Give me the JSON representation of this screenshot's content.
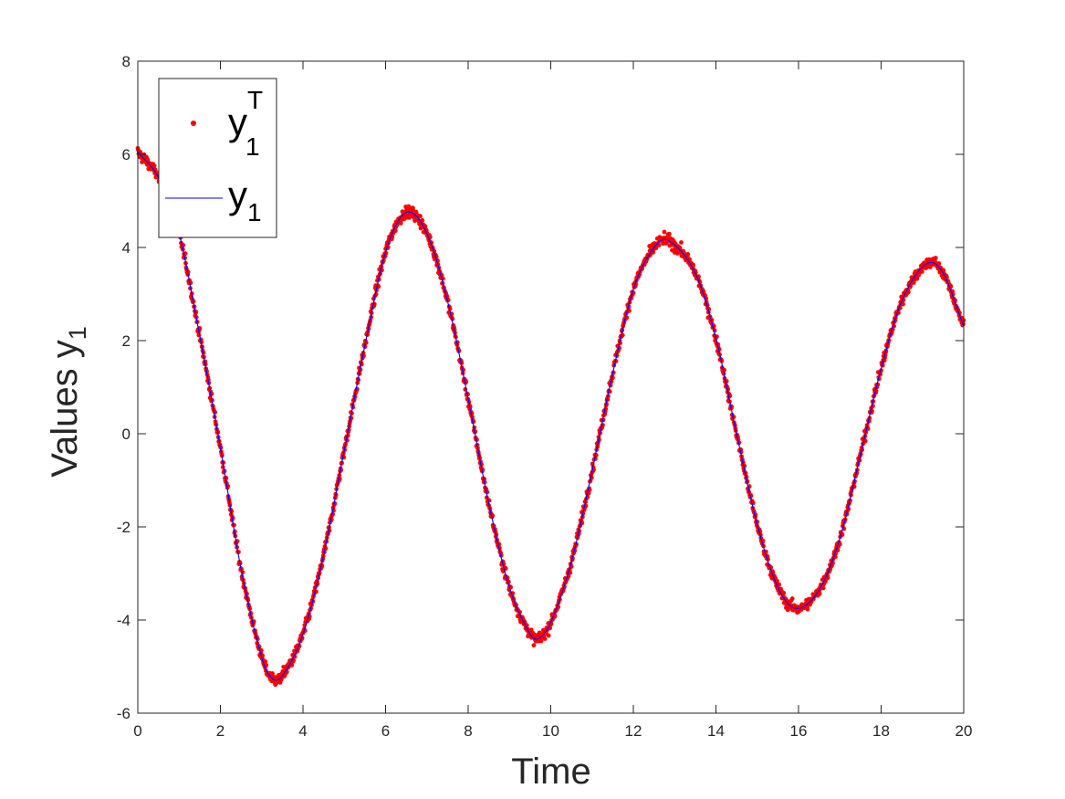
{
  "chart_data": {
    "type": "scatter",
    "xlabel": "Time",
    "ylabel": {
      "main": "Values y",
      "sub": "1"
    },
    "xlim": [
      0,
      20
    ],
    "ylim": [
      -6,
      8
    ],
    "xticks": [
      0,
      2,
      4,
      6,
      8,
      10,
      12,
      14,
      16,
      18,
      20
    ],
    "yticks": [
      -6,
      -4,
      -2,
      0,
      2,
      4,
      6,
      8
    ],
    "grid": false,
    "legend": {
      "placement": "top-left",
      "entries": [
        {
          "symbol": "marker",
          "base": "y",
          "sub": "1",
          "sup": "T"
        },
        {
          "symbol": "line",
          "base": "y",
          "sub": "1"
        }
      ]
    },
    "series": [
      {
        "name": "y1T",
        "kind": "noisy-markers",
        "color": "#ff0000",
        "x": [
          0,
          0.5,
          1,
          1.5,
          2,
          2.5,
          3,
          3.25,
          3.5,
          4,
          4.5,
          5,
          5.5,
          6,
          6.5,
          7,
          7.5,
          8,
          8.5,
          9,
          9.5,
          9.7,
          10,
          10.5,
          11,
          11.5,
          12,
          12.5,
          12.85,
          13.5,
          14,
          14.5,
          15,
          15.5,
          15.95,
          16.5,
          17,
          17.5,
          18,
          18.5,
          19.1,
          19.5,
          20
        ],
        "y": [
          6.05,
          5.5,
          4.3,
          2.1,
          -0.3,
          -2.9,
          -4.8,
          -5.25,
          -5.2,
          -4.3,
          -2.6,
          -0.35,
          1.9,
          3.9,
          4.75,
          4.3,
          2.85,
          0.75,
          -1.5,
          -3.3,
          -4.3,
          -4.4,
          -4.05,
          -2.75,
          -0.8,
          1.3,
          3.1,
          4.0,
          4.15,
          3.45,
          2.05,
          0.0,
          -1.95,
          -3.3,
          -3.75,
          -3.35,
          -2.25,
          -0.45,
          1.4,
          2.85,
          3.65,
          3.45,
          2.3
        ]
      },
      {
        "name": "y1",
        "kind": "line",
        "color": "#0000ff",
        "x": [
          0,
          0.5,
          1,
          1.5,
          2,
          2.5,
          3,
          3.25,
          3.5,
          4,
          4.5,
          5,
          5.5,
          6,
          6.5,
          7,
          7.5,
          8,
          8.5,
          9,
          9.5,
          9.7,
          10,
          10.5,
          11,
          11.5,
          12,
          12.5,
          12.85,
          13.5,
          14,
          14.5,
          15,
          15.5,
          15.95,
          16.5,
          17,
          17.5,
          18,
          18.5,
          19.1,
          19.5,
          20
        ],
        "y": [
          6.05,
          5.5,
          4.3,
          2.1,
          -0.3,
          -2.9,
          -4.8,
          -5.25,
          -5.2,
          -4.3,
          -2.6,
          -0.35,
          1.9,
          3.9,
          4.75,
          4.3,
          2.85,
          0.75,
          -1.5,
          -3.3,
          -4.3,
          -4.4,
          -4.05,
          -2.75,
          -0.8,
          1.3,
          3.1,
          4.0,
          4.15,
          3.45,
          2.05,
          0.0,
          -1.95,
          -3.3,
          -3.75,
          -3.35,
          -2.25,
          -0.45,
          1.4,
          2.85,
          3.65,
          3.45,
          2.3
        ]
      }
    ]
  }
}
